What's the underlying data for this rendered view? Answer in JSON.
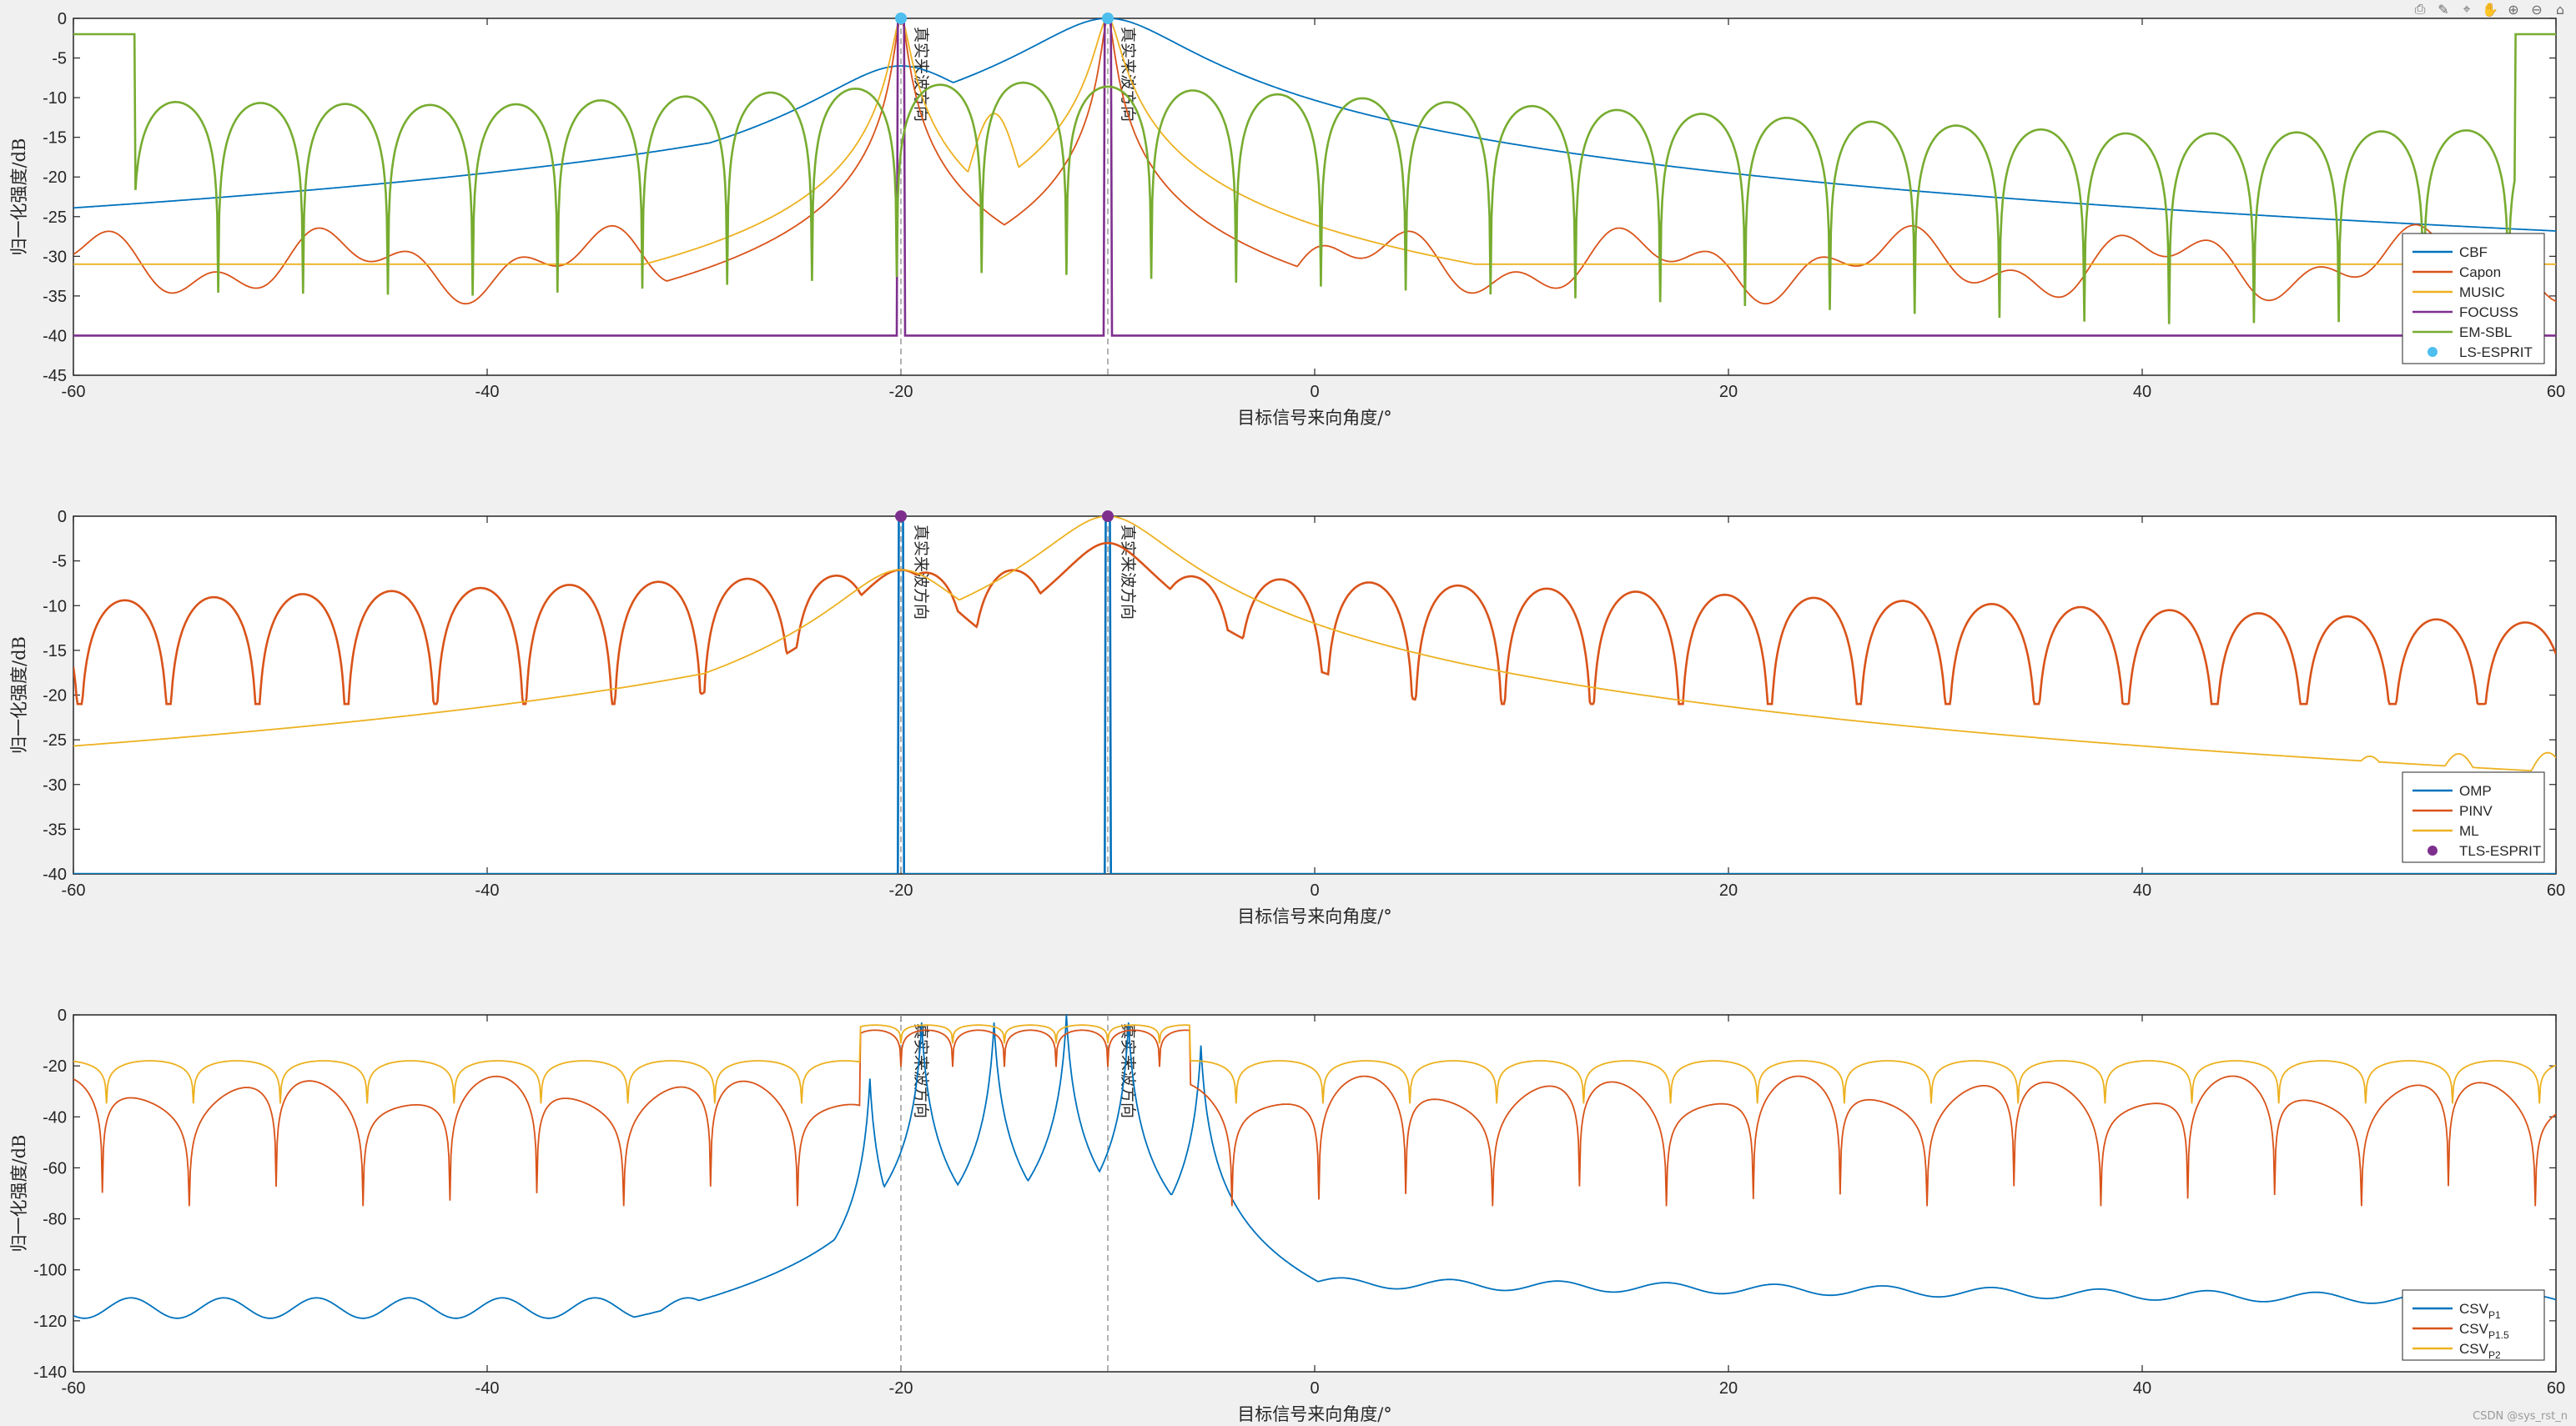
{
  "toolbar": {
    "buttons": [
      {
        "name": "export-icon",
        "glyph": "⎙"
      },
      {
        "name": "brush-icon",
        "glyph": "✎"
      },
      {
        "name": "datatip-icon",
        "glyph": "⌖"
      },
      {
        "name": "pan-icon",
        "glyph": "✋"
      },
      {
        "name": "zoom-in-icon",
        "glyph": "⊕"
      },
      {
        "name": "zoom-out-icon",
        "glyph": "⊖"
      },
      {
        "name": "home-icon",
        "glyph": "⌂"
      }
    ]
  },
  "watermark": "CSDN @sys_rst_n",
  "chart_data": [
    {
      "type": "line",
      "xlabel": "目标信号来向角度/°",
      "ylabel": "归一化强度/dB",
      "xlim": [
        -60,
        60
      ],
      "ylim": [
        -45,
        0
      ],
      "xticks": [
        "-60",
        "-40",
        "-20",
        "0",
        "20",
        "40",
        "60"
      ],
      "yticks": [
        "0",
        "-5",
        "-10",
        "-15",
        "-20",
        "-25",
        "-30",
        "-35",
        "-40",
        "-45"
      ],
      "true_directions": [
        -20,
        -10
      ],
      "annotation": "真实来波方向",
      "legend_position": "bottom-right",
      "series": [
        {
          "name": "CBF",
          "color": "#0072BD"
        },
        {
          "name": "Capon",
          "color": "#D95319"
        },
        {
          "name": "MUSIC",
          "color": "#EDB120"
        },
        {
          "name": "FOCUSS",
          "color": "#7E2F8E"
        },
        {
          "name": "EM-SBL",
          "color": "#77AC30"
        },
        {
          "name": "LS-ESPRIT",
          "color": "#4DBEEE",
          "marker": "dot",
          "points": [
            [
              -20,
              0
            ],
            [
              -10,
              0
            ]
          ]
        }
      ]
    },
    {
      "type": "line",
      "xlabel": "目标信号来向角度/°",
      "ylabel": "归一化强度/dB",
      "xlim": [
        -60,
        60
      ],
      "ylim": [
        -40,
        0
      ],
      "xticks": [
        "-60",
        "-40",
        "-20",
        "0",
        "20",
        "40",
        "60"
      ],
      "yticks": [
        "0",
        "-5",
        "-10",
        "-15",
        "-20",
        "-25",
        "-30",
        "-35",
        "-40"
      ],
      "true_directions": [
        -20,
        -10
      ],
      "annotation": "真实来波方向",
      "legend_position": "bottom-right",
      "series": [
        {
          "name": "OMP",
          "color": "#0072BD"
        },
        {
          "name": "PINV",
          "color": "#D95319"
        },
        {
          "name": "ML",
          "color": "#EDB120"
        },
        {
          "name": "TLS-ESPRIT",
          "color": "#7E2F8E",
          "marker": "dot",
          "points": [
            [
              -20,
              0
            ],
            [
              -10,
              0
            ]
          ]
        }
      ]
    },
    {
      "type": "line",
      "xlabel": "目标信号来向角度/°",
      "ylabel": "归一化强度/dB",
      "xlim": [
        -60,
        60
      ],
      "ylim": [
        -140,
        0
      ],
      "xticks": [
        "-60",
        "-40",
        "-20",
        "0",
        "20",
        "40",
        "60"
      ],
      "yticks": [
        "0",
        "-20",
        "-40",
        "-60",
        "-80",
        "-100",
        "-120",
        "-140"
      ],
      "true_directions": [
        -20,
        -10
      ],
      "annotation": "真实来波方向",
      "legend_position": "bottom-right",
      "series": [
        {
          "name": "CSV",
          "sub": "P1",
          "color": "#0072BD"
        },
        {
          "name": "CSV",
          "sub": "P1.5",
          "color": "#D95319"
        },
        {
          "name": "CSV",
          "sub": "P2",
          "color": "#EDB120"
        }
      ]
    }
  ]
}
